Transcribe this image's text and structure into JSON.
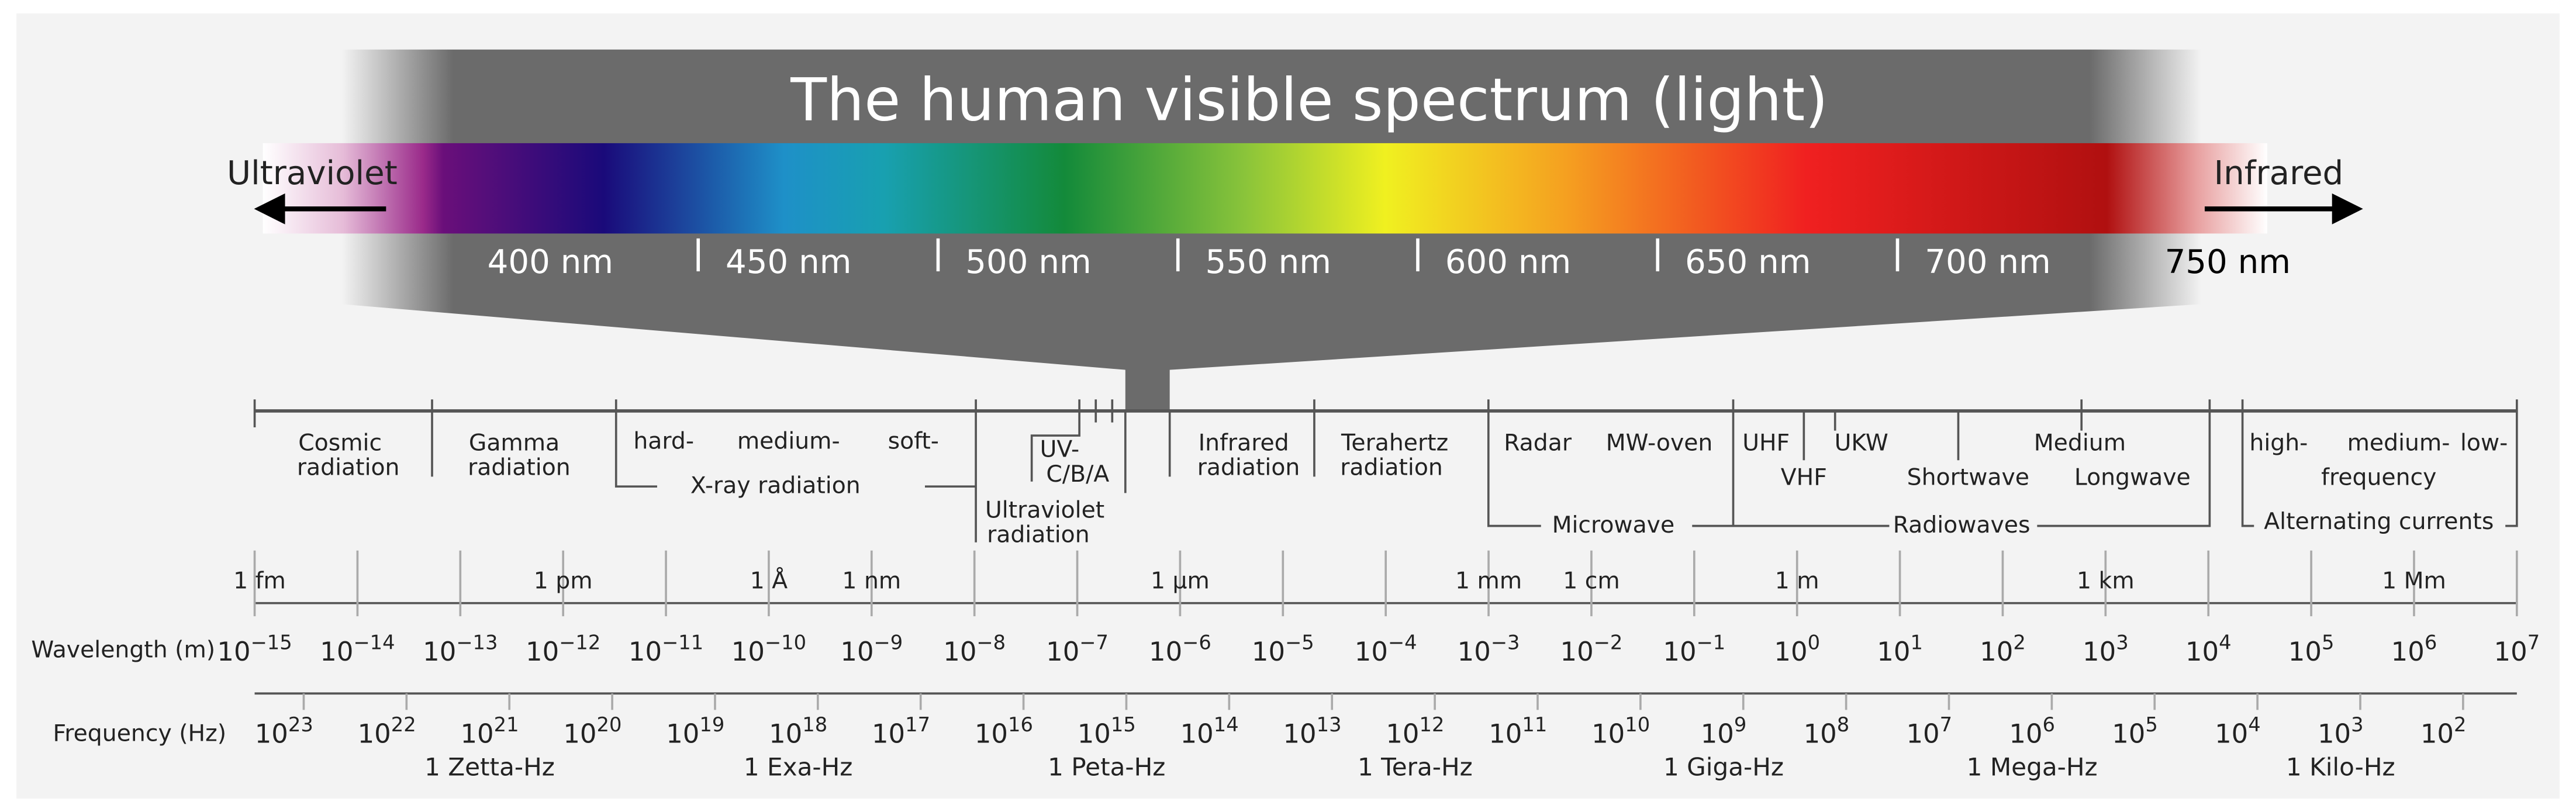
{
  "title": "The human visible spectrum (light)",
  "visible": {
    "left_label": "Ultraviolet",
    "right_label": "Infrared",
    "nm_labels": [
      "400 nm",
      "450 nm",
      "500 nm",
      "550 nm",
      "600 nm",
      "650 nm",
      "700 nm",
      "750 nm"
    ]
  },
  "band_labels": [
    "Cosmic",
    "radiation",
    "Gamma",
    "radiation",
    "hard-",
    "medium-",
    "soft-",
    "X-ray radiation",
    "UV-",
    "C/B/A",
    "Ultraviolet",
    "radiation",
    "Infrared",
    "radiation",
    "Terahertz",
    "radiation",
    "Radar",
    "MW-oven",
    "Microwave",
    "UHF",
    "VHF",
    "UKW",
    "Medium",
    "Shortwave",
    "Longwave",
    "Radiowaves",
    "high-",
    "medium-",
    "low-",
    "frequency",
    "Alternating currents"
  ],
  "wavelength": {
    "label": "Wavelength (m)",
    "base": "10",
    "exponents": [
      "−15",
      "−14",
      "−13",
      "−12",
      "−11",
      "−10",
      "−9",
      "−8",
      "−7",
      "−6",
      "−5",
      "−4",
      "−3",
      "−2",
      "−1",
      "0",
      "1",
      "2",
      "3",
      "4",
      "5",
      "6",
      "7"
    ],
    "named": [
      "1 fm",
      "1 pm",
      "1 Å",
      "1 nm",
      "1 μm",
      "1 mm",
      "1 cm",
      "1 m",
      "1 km",
      "1 Mm"
    ]
  },
  "frequency": {
    "label": "Frequency (Hz)",
    "base": "10",
    "exponents": [
      "23",
      "22",
      "21",
      "20",
      "19",
      "18",
      "17",
      "16",
      "15",
      "14",
      "13",
      "12",
      "11",
      "10",
      "9",
      "8",
      "7",
      "6",
      "5",
      "4",
      "3",
      "2"
    ],
    "named": [
      "1 Zetta-Hz",
      "1 Exa-Hz",
      "1 Peta-Hz",
      "1 Tera-Hz",
      "1 Giga-Hz",
      "1 Mega-Hz",
      "1 Kilo-Hz"
    ]
  }
}
